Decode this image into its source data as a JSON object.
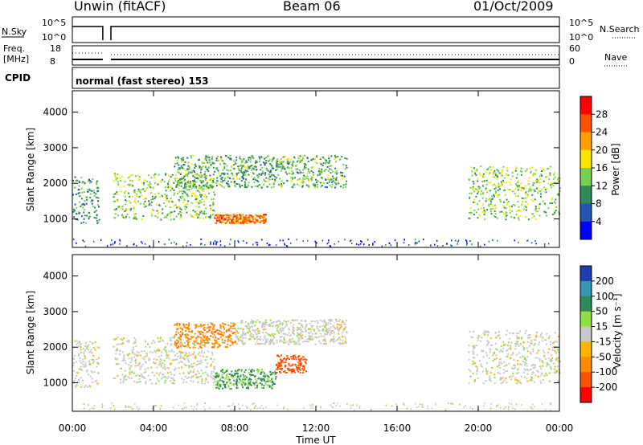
{
  "header": {
    "station": "Unwin (fitACF)",
    "beam": "Beam 06",
    "date": "01/Oct/2009"
  },
  "noise_panel": {
    "left_label": "N.Sky",
    "right_label": "N.Search",
    "left_ticks": [
      "10^5",
      "10^0"
    ],
    "right_ticks": [
      "10^5",
      "10^0"
    ]
  },
  "freq_panel": {
    "left_label": "Freq.",
    "left_unit": "[MHz]",
    "right_label": "Nave",
    "left_ticks": [
      "18",
      "8"
    ],
    "right_ticks": [
      "60",
      "0"
    ]
  },
  "cpid": {
    "label": "CPID",
    "value": "normal (fast stereo) 153"
  },
  "power_panel": {
    "ylabel": "Slant Range [km]",
    "yticks": [
      "4000",
      "3000",
      "2000",
      "1000"
    ],
    "colorbar_label": "Power [dB]",
    "colorbar_ticks": [
      "28",
      "24",
      "20",
      "16",
      "12",
      "8",
      "4"
    ],
    "colors": [
      "#0000ff",
      "#2356b4",
      "#2e8b57",
      "#78d050",
      "#f7e600",
      "#ffa000",
      "#ff5000",
      "#ff0000"
    ]
  },
  "velocity_panel": {
    "ylabel": "Slant Range [km]",
    "yticks": [
      "4000",
      "3000",
      "2000",
      "1000"
    ],
    "colorbar_label": "Velocity [m s⁻¹]",
    "colorbar_ticks": [
      "200",
      "100",
      "50",
      "15",
      "-15",
      "-50",
      "-100",
      "-200"
    ],
    "colors": [
      "#1e3cb4",
      "#3296b4",
      "#2e8b57",
      "#8ce040",
      "#c8c8c8",
      "#ffb400",
      "#ff8c00",
      "#ff5000",
      "#ff0000"
    ]
  },
  "xaxis": {
    "ticks": [
      "00:00",
      "04:00",
      "08:00",
      "12:00",
      "16:00",
      "20:00",
      "00:00"
    ],
    "label": "Time UT"
  },
  "chart_data": [
    {
      "type": "heatmap",
      "title": "Power",
      "xlabel": "Time UT",
      "ylabel": "Slant Range [km]",
      "x_range_hours": [
        0,
        24
      ],
      "y_range_km": [
        200,
        4600
      ],
      "colorbar": {
        "label": "Power [dB]",
        "range": [
          0,
          32
        ]
      },
      "echo_regions": [
        {
          "t0": 0.0,
          "t1": 1.3,
          "r0": 900,
          "r1": 2200,
          "power": 10
        },
        {
          "t0": 2.0,
          "t1": 7.0,
          "r0": 1000,
          "r1": 2300,
          "power": 14
        },
        {
          "t0": 5.0,
          "t1": 13.5,
          "r0": 1900,
          "r1": 2800,
          "power": 12
        },
        {
          "t0": 7.0,
          "t1": 9.5,
          "r0": 900,
          "r1": 1150,
          "power": 24
        },
        {
          "t0": 19.5,
          "t1": 24.0,
          "r0": 1000,
          "r1": 2500,
          "power": 14
        }
      ]
    },
    {
      "type": "heatmap",
      "title": "Velocity",
      "xlabel": "Time UT",
      "ylabel": "Slant Range [km]",
      "x_range_hours": [
        0,
        24
      ],
      "y_range_km": [
        200,
        4600
      ],
      "colorbar": {
        "label": "Velocity [m s-1]",
        "range": [
          -200,
          200
        ]
      },
      "echo_regions": [
        {
          "t0": 0.0,
          "t1": 1.3,
          "r0": 900,
          "r1": 2200,
          "velocity": 0
        },
        {
          "t0": 2.0,
          "t1": 7.0,
          "r0": 1000,
          "r1": 2300,
          "velocity": 0
        },
        {
          "t0": 5.0,
          "t1": 8.0,
          "r0": 2000,
          "r1": 2700,
          "velocity": -60
        },
        {
          "t0": 8.0,
          "t1": 13.5,
          "r0": 2100,
          "r1": 2800,
          "velocity": 0
        },
        {
          "t0": 7.0,
          "t1": 10.0,
          "r0": 850,
          "r1": 1400,
          "velocity": 40
        },
        {
          "t0": 10.0,
          "t1": 11.5,
          "r0": 1300,
          "r1": 1800,
          "velocity": -100
        },
        {
          "t0": 19.5,
          "t1": 24.0,
          "r0": 1000,
          "r1": 2500,
          "velocity": 0
        }
      ]
    }
  ]
}
